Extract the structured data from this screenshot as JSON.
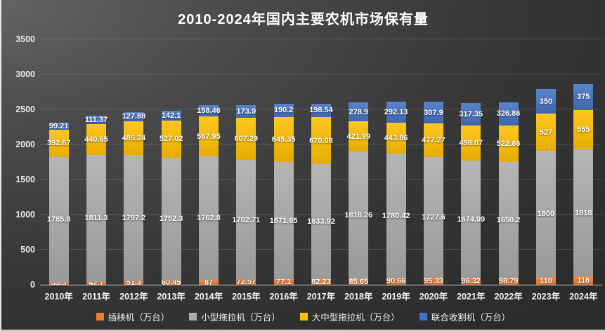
{
  "chart_data": {
    "type": "bar",
    "stacked": true,
    "title": "2010-2024年国内主要农机市场保有量",
    "categories": [
      "2010年",
      "2011年",
      "2012年",
      "2013年",
      "2014年",
      "2015年",
      "2016年",
      "2017年",
      "2018年",
      "2019年",
      "2020年",
      "2021年",
      "2022年",
      "2023年",
      "2024年"
    ],
    "series": [
      {
        "name": "插秧机（万台）",
        "color": "#ED7D31",
        "values": [
          33.3,
          42.7,
          51.3,
          60.45,
          67,
          72.57,
          77.1,
          82.23,
          85.65,
          90.66,
          95.33,
          96.32,
          98.79,
          110,
          116
        ]
      },
      {
        "name": "小型拖拉机（万台）",
        "color": "#ABABAB",
        "values": [
          1785.8,
          1811.3,
          1797.2,
          1752.3,
          1762.8,
          1702.71,
          1671.65,
          1633.92,
          1818.26,
          1780.42,
          1727.6,
          1674.99,
          1650.2,
          1800,
          1818
        ]
      },
      {
        "name": "大中型拖拉机（万台）",
        "color": "#FFC000",
        "values": [
          392.67,
          440.65,
          485.24,
          527.02,
          567.95,
          607.29,
          645.35,
          670.08,
          421.99,
          443.86,
          477.27,
          498.07,
          522.86,
          527,
          555
        ]
      },
      {
        "name": "联合收割机（万台）",
        "color": "#4472C4",
        "values": [
          99.21,
          111.37,
          127.88,
          142.1,
          158.46,
          173.9,
          190.2,
          198.54,
          278.9,
          292.13,
          307.9,
          317.35,
          326.86,
          350,
          375
        ]
      }
    ],
    "ylim": [
      0,
      3500
    ],
    "y_ticks": [
      0,
      500,
      1000,
      1500,
      2000,
      2500,
      3000,
      3500
    ],
    "grid": true,
    "legend_position": "bottom",
    "data_labels": true
  }
}
